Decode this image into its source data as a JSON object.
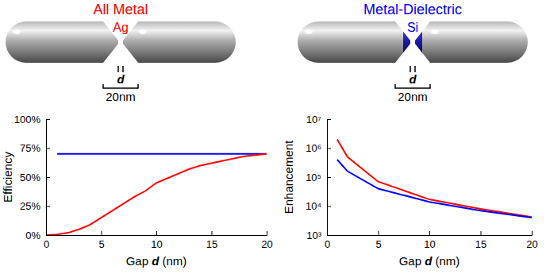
{
  "chart_data": [
    {
      "type": "line",
      "xlabel": "Gap d (nm)",
      "ylabel": "Efficiency",
      "x": [
        0,
        1,
        2,
        3,
        4,
        5,
        6,
        7,
        8,
        9,
        10,
        11,
        12,
        13,
        14,
        15,
        16,
        17,
        18,
        19,
        20
      ],
      "xlim": [
        0,
        20
      ],
      "xticks": [
        0,
        5,
        10,
        15,
        20
      ],
      "ylim": [
        0,
        100
      ],
      "yticks": [
        {
          "value": 0,
          "label": "0%"
        },
        {
          "value": 25,
          "label": "25%"
        },
        {
          "value": 50,
          "label": "50%"
        },
        {
          "value": 75,
          "label": "75%"
        },
        {
          "value": 100,
          "label": "100%"
        }
      ],
      "grid": false,
      "series": [
        {
          "color": "#0000ff",
          "values": [
            null,
            70,
            70,
            70,
            70,
            70,
            70,
            70,
            70,
            70,
            70,
            70,
            70,
            70,
            70,
            70,
            70,
            70,
            70,
            70,
            70
          ]
        },
        {
          "color": "#ff0000",
          "values": [
            0,
            0.5,
            2,
            5,
            9,
            15,
            21,
            27,
            33,
            38,
            45,
            49,
            53,
            57,
            60,
            62,
            64,
            66,
            68,
            69,
            70
          ]
        }
      ]
    },
    {
      "type": "line",
      "xlabel": "Gap d (nm)",
      "ylabel": "Enhancement",
      "x": [
        1,
        2,
        5,
        10,
        15,
        20
      ],
      "xlim": [
        0,
        20
      ],
      "xticks": [
        0,
        5,
        10,
        15,
        20
      ],
      "log": "y",
      "ylim": [
        1000,
        10000000
      ],
      "yticks": [
        {
          "value": 1000,
          "label": "10³"
        },
        {
          "value": 10000,
          "label": "10⁴"
        },
        {
          "value": 100000,
          "label": "10⁵"
        },
        {
          "value": 1000000,
          "label": "10⁶"
        },
        {
          "value": 10000000,
          "label": "10⁷"
        }
      ],
      "grid": false,
      "series": [
        {
          "color": "#ff0000",
          "values": [
            2000000,
            500000,
            70000,
            17000,
            8000,
            4200
          ]
        },
        {
          "color": "#0000ff",
          "values": [
            400000,
            160000,
            40000,
            14000,
            7000,
            4000
          ]
        }
      ]
    }
  ],
  "diagram": {
    "panels": [
      {
        "title": "All Metal",
        "material": "Ag",
        "gap_label": "d",
        "scale_label": "20nm"
      },
      {
        "title": "Metal-Dielectric",
        "material": "Si",
        "gap_label": "d",
        "scale_label": "20nm"
      }
    ]
  }
}
